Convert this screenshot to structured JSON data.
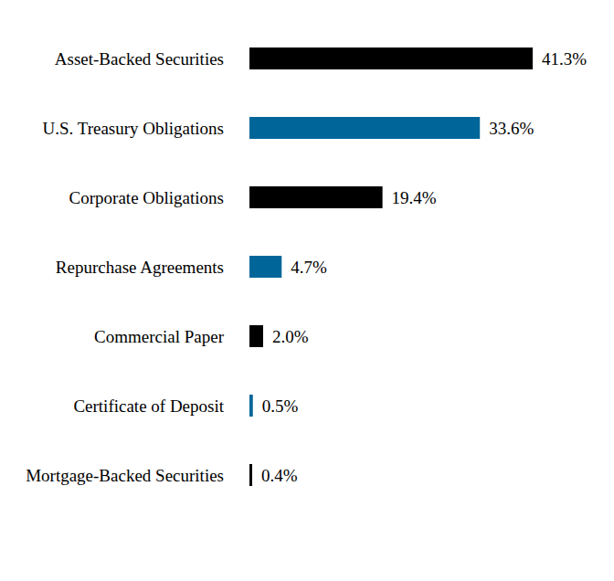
{
  "chart_data": {
    "type": "bar",
    "orientation": "horizontal",
    "categories": [
      "Asset-Backed Securities",
      "U.S. Treasury Obligations",
      "Corporate Obligations",
      "Repurchase Agreements",
      "Commercial Paper",
      "Certificate of Deposit",
      "Mortgage-Backed Securities"
    ],
    "values": [
      41.3,
      33.6,
      19.4,
      4.7,
      2.0,
      0.5,
      0.4
    ],
    "value_labels": [
      "41.3%",
      "33.6%",
      "19.4%",
      "4.7%",
      "2.0%",
      "0.5%",
      "0.4%"
    ],
    "colors": [
      "#000000",
      "#006699",
      "#000000",
      "#006699",
      "#000000",
      "#006699",
      "#000000"
    ],
    "data_labels": true,
    "tick_labels": "y",
    "grid": false
  }
}
